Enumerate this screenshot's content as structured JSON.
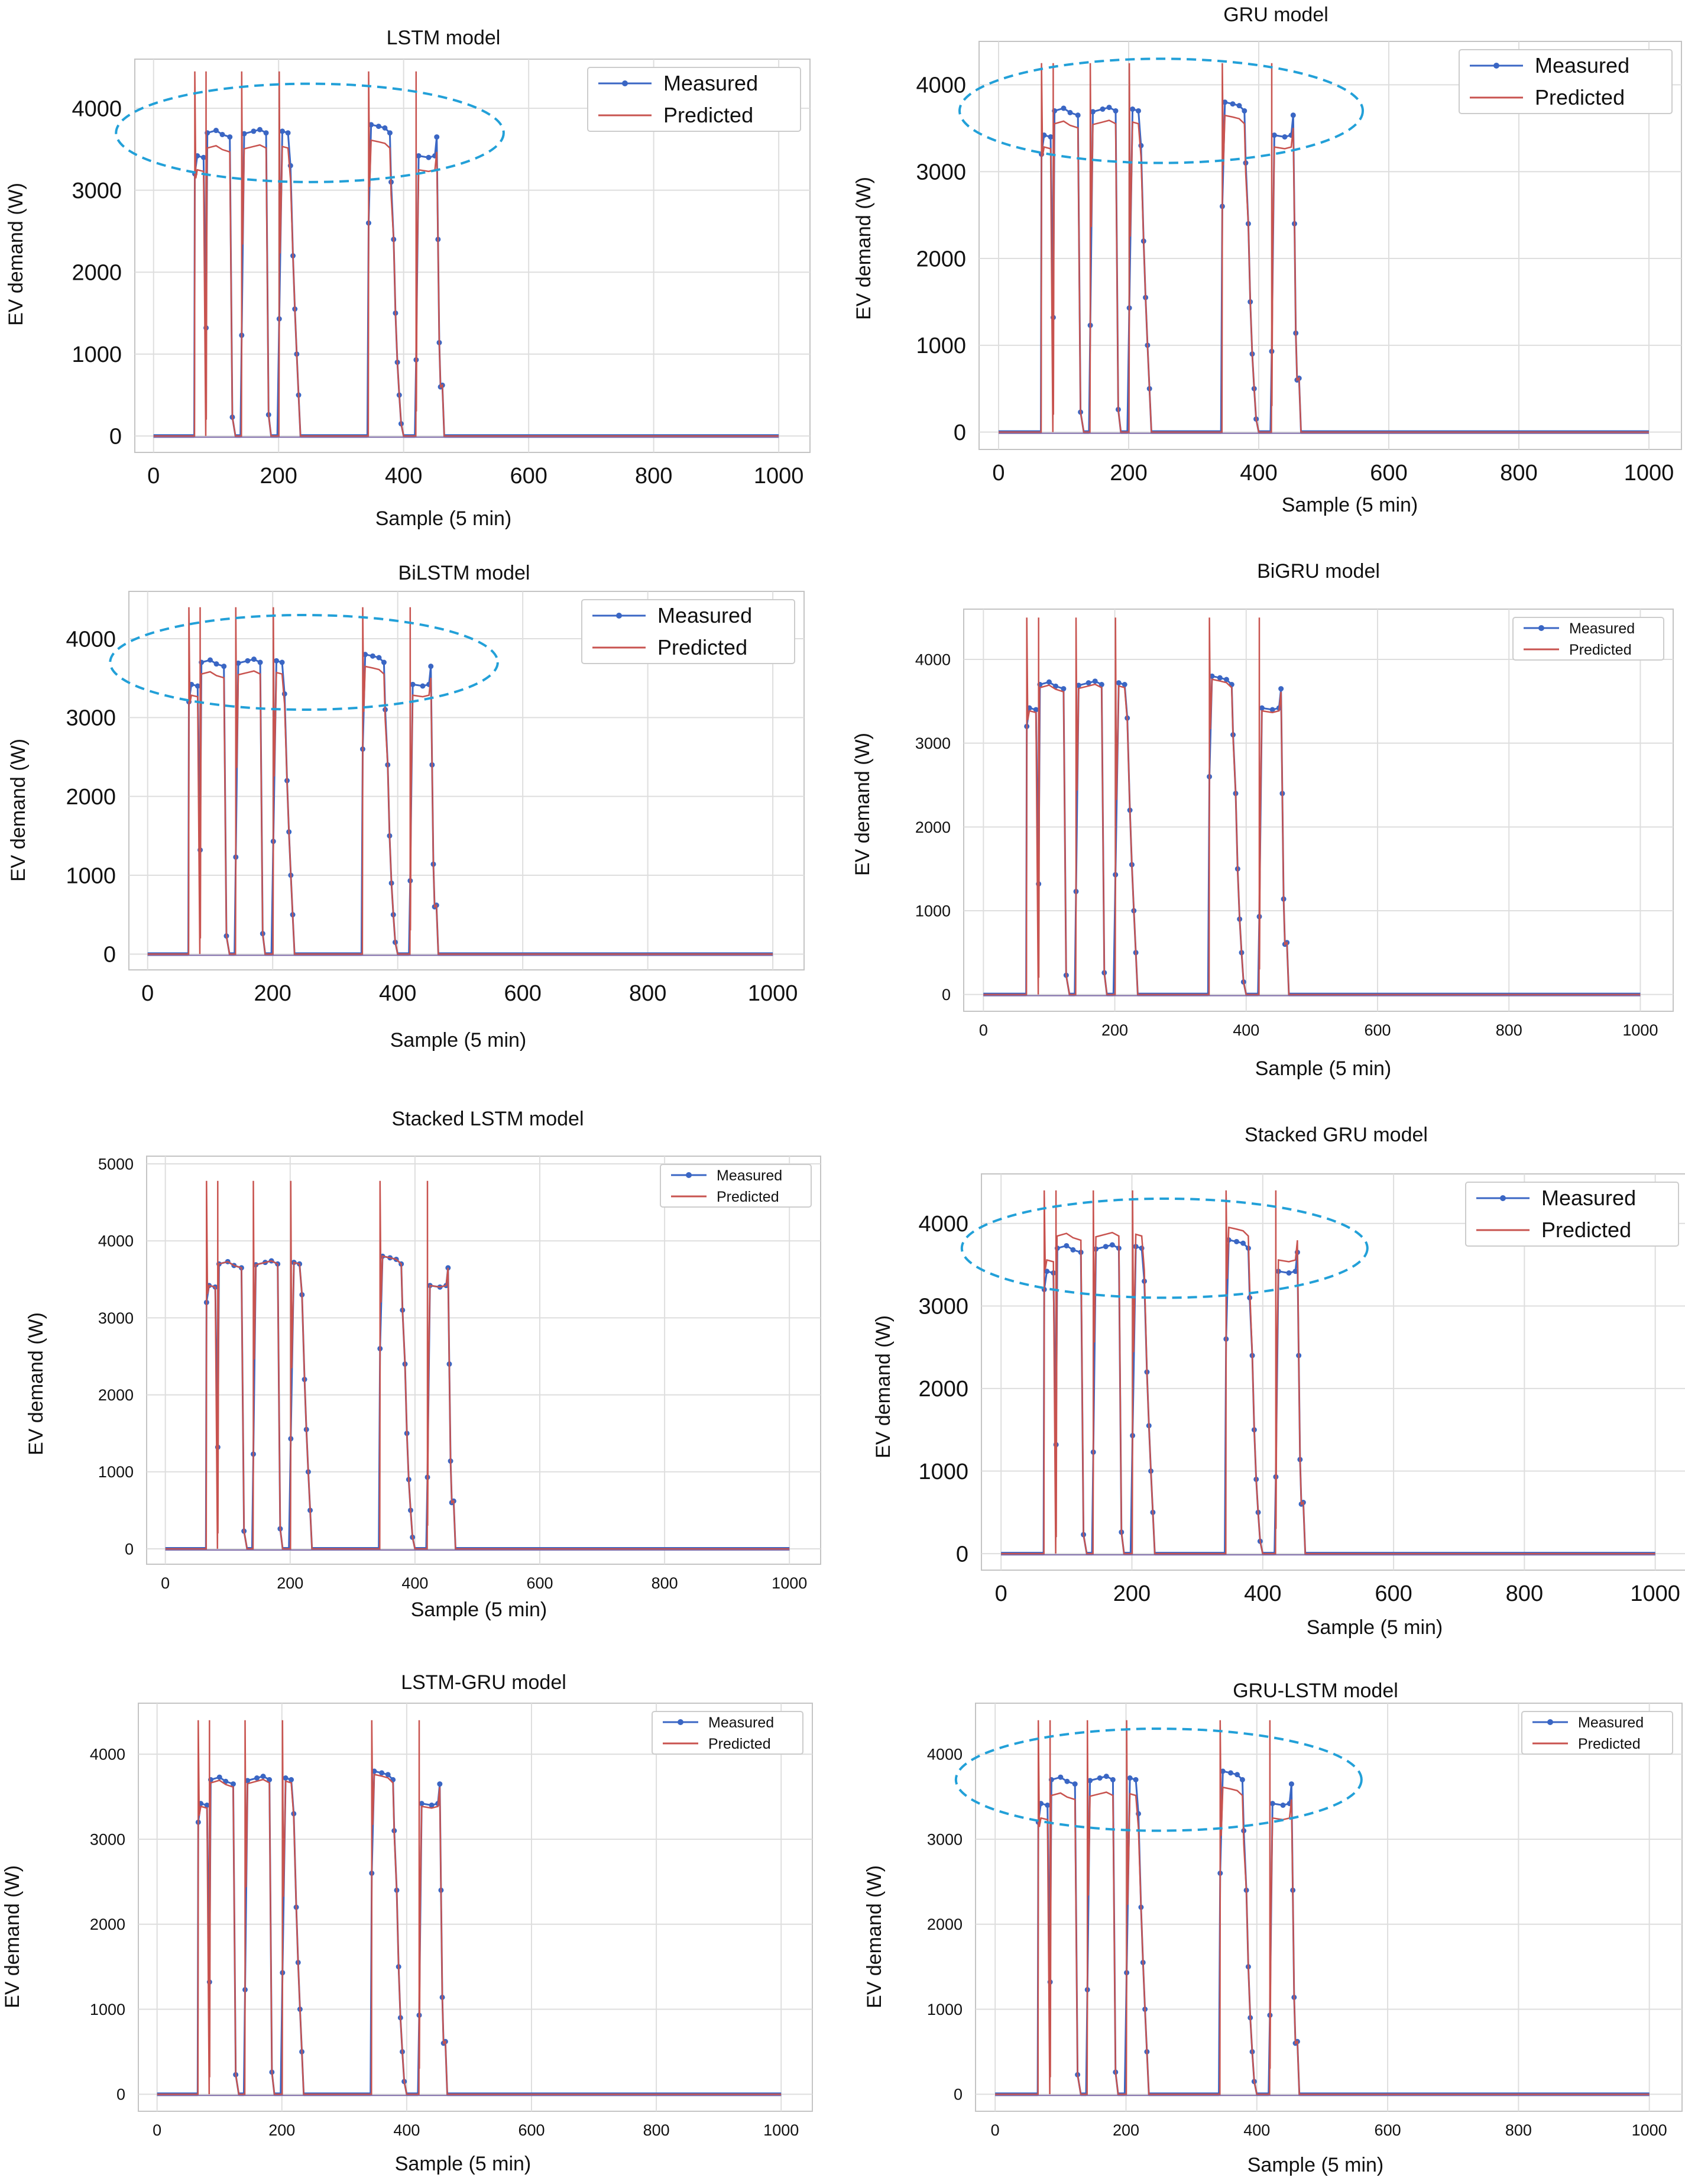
{
  "colors": {
    "measured": "#3a66c4",
    "predicted": "#c8534f",
    "ellipse": "#22a0d8",
    "grid": "#dedede",
    "frame": "#c4c4c4"
  },
  "common": {
    "ylabel": "EV demand (W)",
    "xlabel": "Sample (5 min)",
    "legend": [
      "Measured",
      "Predicted"
    ]
  },
  "chart_data": [
    {
      "type": "line",
      "title": "LSTM model",
      "xlabel": "Sample (5 min)",
      "ylabel": "EV demand (W)",
      "xlim": [
        -30,
        1050
      ],
      "ylim": [
        -200,
        4600
      ],
      "xticks": [
        0,
        200,
        400,
        600,
        800,
        1000
      ],
      "xtick_labels": [
        "0",
        "200",
        "400",
        "600",
        "800",
        "1000"
      ],
      "yticks": [
        0,
        1000,
        2000,
        3000,
        4000
      ],
      "ytick_labels": [
        "0",
        "1000",
        "2000",
        "3000",
        "4000"
      ],
      "legend": [
        "Measured",
        "Predicted"
      ],
      "legend_position": "top-right",
      "pred_bias": -0.05,
      "spike": 4450,
      "highlight": true
    },
    {
      "type": "line",
      "title": "GRU model",
      "xlabel": "Sample (5 min)",
      "ylabel": "EV demand (W)",
      "xlim": [
        -30,
        1050
      ],
      "ylim": [
        -200,
        4500
      ],
      "xticks": [
        0,
        200,
        400,
        600,
        800,
        1000
      ],
      "xtick_labels": [
        "0",
        "200",
        "400",
        "600",
        "800",
        "1000"
      ],
      "yticks": [
        0,
        1000,
        2000,
        3000,
        4000
      ],
      "ytick_labels": [
        "0",
        "1000",
        "2000",
        "3000",
        "4000"
      ],
      "legend": [
        "Measured",
        "Predicted"
      ],
      "legend_position": "top-right",
      "pred_bias": -0.04,
      "spike": 4250,
      "highlight": true
    },
    {
      "type": "line",
      "title": "BiLSTM model",
      "xlabel": "Sample (5 min)",
      "ylabel": "EV demand (W)",
      "xlim": [
        -30,
        1050
      ],
      "ylim": [
        -200,
        4600
      ],
      "xticks": [
        0,
        200,
        400,
        600,
        800,
        1000
      ],
      "xtick_labels": [
        "0",
        "200",
        "400",
        "600",
        "800",
        "1000"
      ],
      "yticks": [
        0,
        1000,
        2000,
        3000,
        4000
      ],
      "ytick_labels": [
        "0",
        "1000",
        "2000",
        "3000",
        "4000"
      ],
      "legend": [
        "Measured",
        "Predicted"
      ],
      "legend_position": "top-right",
      "pred_bias": -0.04,
      "spike": 4400,
      "highlight": true
    },
    {
      "type": "line",
      "title": "BiGRU model",
      "xlabel": "Sample (5 min)",
      "ylabel": "EV demand (W)",
      "xlim": [
        -30,
        1050
      ],
      "ylim": [
        -200,
        4600
      ],
      "xticks": [
        0,
        200,
        400,
        600,
        800,
        1000
      ],
      "xtick_labels": [
        "0",
        "200",
        "400",
        "600",
        "800",
        "1000"
      ],
      "yticks": [
        0,
        1000,
        2000,
        3000,
        4000
      ],
      "ytick_labels": [
        "0",
        "1000",
        "2000",
        "3000",
        "4000"
      ],
      "legend": [
        "Measured",
        "Predicted"
      ],
      "legend_position": "top-right",
      "pred_bias": -0.01,
      "spike": 4500,
      "highlight": false
    },
    {
      "type": "line",
      "title": "Stacked LSTM model",
      "xlabel": "Sample (5 min)",
      "ylabel": "EV demand (W)",
      "xlim": [
        -30,
        1050
      ],
      "ylim": [
        -200,
        5100
      ],
      "xticks": [
        0,
        200,
        400,
        600,
        800,
        1000
      ],
      "xtick_labels": [
        "0",
        "200",
        "400",
        "600",
        "800",
        "1000"
      ],
      "yticks": [
        0,
        1000,
        2000,
        3000,
        4000,
        5000
      ],
      "ytick_labels": [
        "0",
        "1000",
        "2000",
        "3000",
        "4000",
        "5000"
      ],
      "legend": [
        "Measured",
        "Predicted"
      ],
      "legend_position": "top-right",
      "pred_bias": 0.0,
      "spike": 4780,
      "highlight": false
    },
    {
      "type": "line",
      "title": "Stacked GRU model",
      "xlabel": "Sample (5 min)",
      "ylabel": "EV demand (W)",
      "xlim": [
        -30,
        1050
      ],
      "ylim": [
        -200,
        4600
      ],
      "xticks": [
        0,
        200,
        400,
        600,
        800,
        1000
      ],
      "xtick_labels": [
        "0",
        "200",
        "400",
        "600",
        "800",
        "1000"
      ],
      "yticks": [
        0,
        1000,
        2000,
        3000,
        4000
      ],
      "ytick_labels": [
        "0",
        "1000",
        "2000",
        "3000",
        "4000"
      ],
      "legend": [
        "Measured",
        "Predicted"
      ],
      "legend_position": "top-right",
      "pred_bias": 0.04,
      "spike": 4400,
      "highlight": true
    },
    {
      "type": "line",
      "title": "LSTM-GRU model",
      "xlabel": "Sample (5 min)",
      "ylabel": "EV demand (W)",
      "xlim": [
        -30,
        1050
      ],
      "ylim": [
        -200,
        4600
      ],
      "xticks": [
        0,
        200,
        400,
        600,
        800,
        1000
      ],
      "xtick_labels": [
        "0",
        "200",
        "400",
        "600",
        "800",
        "1000"
      ],
      "yticks": [
        0,
        1000,
        2000,
        3000,
        4000
      ],
      "ytick_labels": [
        "0",
        "1000",
        "2000",
        "3000",
        "4000"
      ],
      "legend": [
        "Measured",
        "Predicted"
      ],
      "legend_position": "top-right",
      "pred_bias": -0.01,
      "spike": 4400,
      "highlight": false
    },
    {
      "type": "line",
      "title": "GRU-LSTM model",
      "xlabel": "Sample (5 min)",
      "ylabel": "EV demand (W)",
      "xlim": [
        -30,
        1050
      ],
      "ylim": [
        -200,
        4600
      ],
      "xticks": [
        0,
        200,
        400,
        600,
        800,
        1000
      ],
      "xtick_labels": [
        "0",
        "200",
        "400",
        "600",
        "800",
        "1000"
      ],
      "yticks": [
        0,
        1000,
        2000,
        3000,
        4000
      ],
      "ytick_labels": [
        "0",
        "1000",
        "2000",
        "3000",
        "4000"
      ],
      "legend": [
        "Measured",
        "Predicted"
      ],
      "legend_position": "top-right",
      "pred_bias": -0.05,
      "spike": 4400,
      "highlight": true
    }
  ],
  "measured_profile": [
    [
      0,
      0
    ],
    [
      65,
      0
    ],
    [
      66,
      3200
    ],
    [
      70,
      3420
    ],
    [
      80,
      3400
    ],
    [
      84,
      1320
    ],
    [
      86,
      3700
    ],
    [
      100,
      3730
    ],
    [
      110,
      3680
    ],
    [
      122,
      3650
    ],
    [
      126,
      230
    ],
    [
      131,
      0
    ],
    [
      139,
      0
    ],
    [
      141,
      1230
    ],
    [
      145,
      3690
    ],
    [
      160,
      3720
    ],
    [
      170,
      3740
    ],
    [
      180,
      3700
    ],
    [
      184,
      260
    ],
    [
      188,
      0
    ],
    [
      198,
      0
    ],
    [
      201,
      1430
    ],
    [
      206,
      3720
    ],
    [
      215,
      3700
    ],
    [
      219,
      3300
    ],
    [
      223,
      2200
    ],
    [
      226,
      1550
    ],
    [
      229,
      1000
    ],
    [
      232,
      500
    ],
    [
      235,
      0
    ],
    [
      342,
      0
    ],
    [
      344,
      2600
    ],
    [
      348,
      3800
    ],
    [
      360,
      3780
    ],
    [
      370,
      3760
    ],
    [
      378,
      3700
    ],
    [
      380,
      3100
    ],
    [
      384,
      2400
    ],
    [
      387,
      1500
    ],
    [
      390,
      900
    ],
    [
      393,
      500
    ],
    [
      396,
      150
    ],
    [
      400,
      0
    ],
    [
      418,
      0
    ],
    [
      420,
      930
    ],
    [
      424,
      3420
    ],
    [
      440,
      3400
    ],
    [
      450,
      3420
    ],
    [
      453,
      3650
    ],
    [
      455,
      2400
    ],
    [
      457,
      1140
    ],
    [
      459,
      600
    ],
    [
      462,
      620
    ],
    [
      465,
      0
    ],
    [
      1000,
      0
    ]
  ],
  "predicted_spikes": [
    66,
    84,
    141,
    201,
    344,
    420
  ],
  "predicted_drops": [
    [
      84,
      200
    ],
    [
      420,
      300
    ]
  ]
}
